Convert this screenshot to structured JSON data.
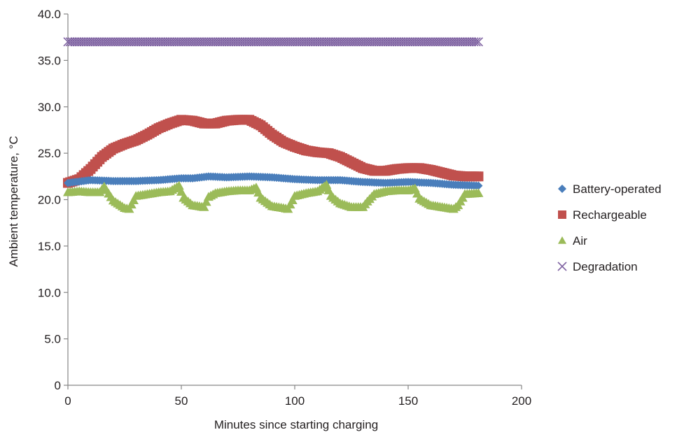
{
  "chart_data": {
    "type": "scatter",
    "title": "",
    "xlabel": "Minutes since starting charging",
    "ylabel": "Ambient temperature, °C",
    "xlim": [
      0,
      200
    ],
    "ylim": [
      0,
      40
    ],
    "x_ticks": [
      0,
      50,
      100,
      150,
      200
    ],
    "x_tick_labels": [
      "0",
      "50",
      "100",
      "150",
      "200"
    ],
    "y_ticks": [
      0,
      5,
      10,
      15,
      20,
      25,
      30,
      35,
      40
    ],
    "y_tick_labels": [
      "0",
      "5.0",
      "10.0",
      "15.0",
      "20.0",
      "25.0",
      "30.0",
      "35.0",
      "40.0"
    ],
    "grid": false,
    "legend_position": "right",
    "series": [
      {
        "name": "Battery-operated",
        "marker": "diamond",
        "color": "#4a7ebb",
        "x": [
          0,
          10,
          20,
          30,
          40,
          50,
          55,
          62,
          70,
          80,
          90,
          100,
          110,
          120,
          130,
          140,
          150,
          160,
          170,
          181
        ],
        "y": [
          21.8,
          22.1,
          22.0,
          22.0,
          22.1,
          22.3,
          22.3,
          22.5,
          22.4,
          22.5,
          22.4,
          22.2,
          22.1,
          22.1,
          21.9,
          21.8,
          21.9,
          21.8,
          21.6,
          21.5
        ]
      },
      {
        "name": "Rechargeable",
        "marker": "square",
        "color": "#c0504d",
        "x": [
          0,
          5,
          10,
          15,
          20,
          25,
          30,
          35,
          40,
          45,
          50,
          55,
          60,
          65,
          70,
          75,
          80,
          85,
          90,
          95,
          100,
          105,
          110,
          115,
          120,
          125,
          130,
          135,
          140,
          145,
          150,
          155,
          160,
          165,
          170,
          175,
          181
        ],
        "y": [
          21.8,
          22.2,
          23.3,
          24.6,
          25.5,
          26.0,
          26.4,
          27.0,
          27.7,
          28.2,
          28.6,
          28.5,
          28.2,
          28.2,
          28.5,
          28.6,
          28.6,
          28.0,
          27.0,
          26.2,
          25.7,
          25.3,
          25.1,
          25.0,
          24.6,
          24.0,
          23.4,
          23.1,
          23.1,
          23.3,
          23.4,
          23.4,
          23.2,
          22.9,
          22.6,
          22.5,
          22.5
        ]
      },
      {
        "name": "Air",
        "marker": "triangle",
        "color": "#9bbb59",
        "x": [
          0,
          5,
          10,
          14,
          16,
          20,
          25,
          27,
          30,
          35,
          40,
          45,
          49,
          51,
          55,
          60,
          62,
          65,
          70,
          75,
          80,
          83,
          85,
          90,
          95,
          97,
          100,
          105,
          110,
          114,
          116,
          120,
          125,
          130,
          132,
          135,
          140,
          145,
          150,
          153,
          155,
          160,
          165,
          170,
          172,
          175,
          181
        ],
        "y": [
          20.8,
          20.9,
          20.8,
          20.8,
          21.4,
          19.9,
          19.1,
          19.0,
          20.4,
          20.6,
          20.8,
          20.9,
          21.5,
          20.2,
          19.4,
          19.2,
          20.3,
          20.7,
          20.9,
          21.0,
          21.0,
          21.3,
          20.2,
          19.3,
          19.1,
          19.0,
          20.4,
          20.7,
          20.9,
          21.6,
          20.4,
          19.6,
          19.2,
          19.2,
          19.8,
          20.6,
          20.9,
          21.0,
          21.0,
          21.2,
          20.1,
          19.4,
          19.2,
          19.0,
          19.4,
          20.6,
          20.7
        ]
      },
      {
        "name": "Degradation",
        "marker": "cross",
        "color": "#7f63a2",
        "x": [
          0,
          181
        ],
        "y": [
          37.0,
          37.0
        ]
      }
    ]
  }
}
